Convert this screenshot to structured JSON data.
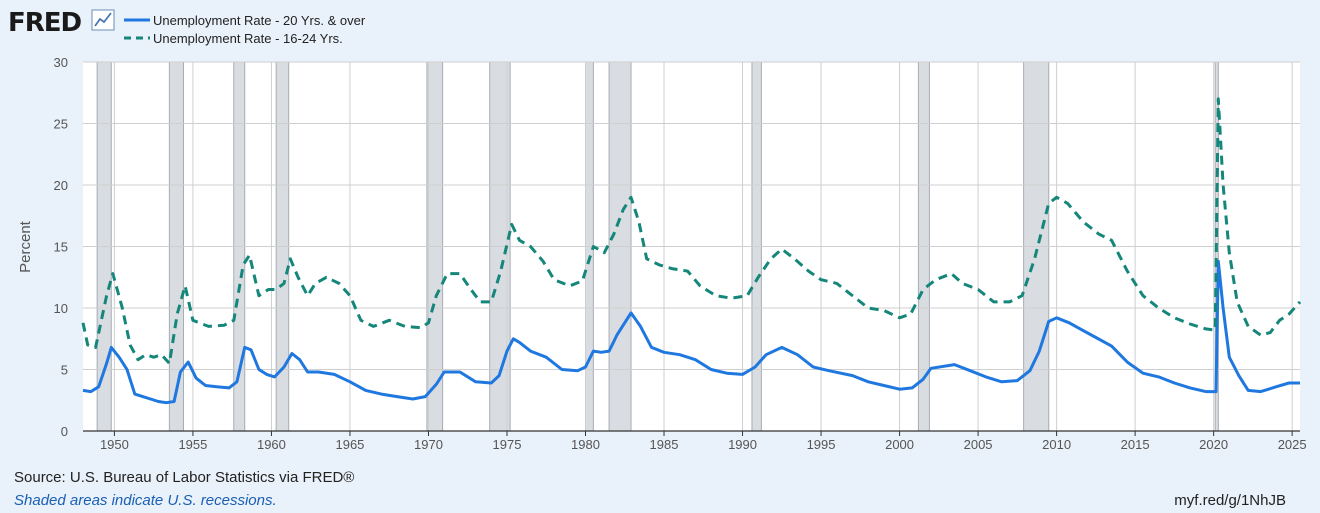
{
  "header": {
    "logo_text": "FRED",
    "logo_icon": "line-chart-icon"
  },
  "legend": [
    {
      "label": "Unemployment Rate - 20 Yrs. & over",
      "style": "solid",
      "color": "#1f77e0"
    },
    {
      "label": "Unemployment Rate - 16-24 Yrs.",
      "style": "dashed",
      "color": "#14867a"
    }
  ],
  "footer": {
    "source": "Source: U.S. Bureau of Labor Statistics via FRED®",
    "note": "Shaded areas indicate U.S. recessions.",
    "link": "myf.red/g/1NhJB"
  },
  "chart_data": {
    "type": "line",
    "ylabel": "Percent",
    "ylim": [
      0,
      30
    ],
    "yticks": [
      0,
      5,
      10,
      15,
      20,
      25,
      30
    ],
    "xlim": [
      1948.0,
      2025.5
    ],
    "xticks": [
      1950,
      1955,
      1960,
      1965,
      1970,
      1975,
      1980,
      1985,
      1990,
      1995,
      2000,
      2005,
      2010,
      2015,
      2020,
      2025
    ],
    "grid": true,
    "legend_position": "top-left",
    "recessions": [
      [
        1948.9,
        1949.8
      ],
      [
        1953.5,
        1954.4
      ],
      [
        1957.6,
        1958.3
      ],
      [
        1960.3,
        1961.1
      ],
      [
        1969.9,
        1970.9
      ],
      [
        1973.9,
        1975.2
      ],
      [
        1980.0,
        1980.5
      ],
      [
        1981.5,
        1982.9
      ],
      [
        1990.6,
        1991.2
      ],
      [
        2001.2,
        2001.9
      ],
      [
        2007.9,
        2009.5
      ],
      [
        2020.1,
        2020.3
      ]
    ],
    "series": [
      {
        "name": "Unemployment Rate - 20 Yrs. & over",
        "color": "#1f77e0",
        "style": "solid",
        "points": [
          [
            1948.0,
            3.3
          ],
          [
            1948.5,
            3.2
          ],
          [
            1949.0,
            3.6
          ],
          [
            1949.5,
            5.5
          ],
          [
            1949.8,
            6.8
          ],
          [
            1950.3,
            6.0
          ],
          [
            1950.8,
            5.0
          ],
          [
            1951.3,
            3.0
          ],
          [
            1951.8,
            2.8
          ],
          [
            1952.3,
            2.6
          ],
          [
            1952.8,
            2.4
          ],
          [
            1953.3,
            2.3
          ],
          [
            1953.8,
            2.4
          ],
          [
            1954.2,
            4.8
          ],
          [
            1954.7,
            5.6
          ],
          [
            1955.2,
            4.3
          ],
          [
            1955.8,
            3.7
          ],
          [
            1956.5,
            3.6
          ],
          [
            1957.3,
            3.5
          ],
          [
            1957.8,
            4.0
          ],
          [
            1958.3,
            6.8
          ],
          [
            1958.7,
            6.6
          ],
          [
            1959.2,
            5.0
          ],
          [
            1959.7,
            4.6
          ],
          [
            1960.2,
            4.4
          ],
          [
            1960.8,
            5.2
          ],
          [
            1961.3,
            6.3
          ],
          [
            1961.8,
            5.8
          ],
          [
            1962.3,
            4.8
          ],
          [
            1963.0,
            4.8
          ],
          [
            1964.0,
            4.6
          ],
          [
            1965.0,
            4.0
          ],
          [
            1966.0,
            3.3
          ],
          [
            1967.0,
            3.0
          ],
          [
            1968.0,
            2.8
          ],
          [
            1969.0,
            2.6
          ],
          [
            1969.8,
            2.8
          ],
          [
            1970.5,
            3.8
          ],
          [
            1971.0,
            4.8
          ],
          [
            1972.0,
            4.8
          ],
          [
            1973.0,
            4.0
          ],
          [
            1974.0,
            3.9
          ],
          [
            1974.5,
            4.5
          ],
          [
            1975.0,
            6.5
          ],
          [
            1975.4,
            7.5
          ],
          [
            1975.8,
            7.2
          ],
          [
            1976.5,
            6.5
          ],
          [
            1977.5,
            6.0
          ],
          [
            1978.5,
            5.0
          ],
          [
            1979.5,
            4.9
          ],
          [
            1980.0,
            5.2
          ],
          [
            1980.5,
            6.5
          ],
          [
            1981.0,
            6.4
          ],
          [
            1981.5,
            6.5
          ],
          [
            1982.0,
            7.8
          ],
          [
            1982.9,
            9.6
          ],
          [
            1983.5,
            8.5
          ],
          [
            1984.2,
            6.8
          ],
          [
            1985.0,
            6.4
          ],
          [
            1986.0,
            6.2
          ],
          [
            1987.0,
            5.8
          ],
          [
            1988.0,
            5.0
          ],
          [
            1989.0,
            4.7
          ],
          [
            1990.0,
            4.6
          ],
          [
            1990.8,
            5.2
          ],
          [
            1991.5,
            6.2
          ],
          [
            1992.5,
            6.8
          ],
          [
            1993.5,
            6.2
          ],
          [
            1994.5,
            5.2
          ],
          [
            1995.5,
            4.9
          ],
          [
            1997.0,
            4.5
          ],
          [
            1998.0,
            4.0
          ],
          [
            1999.0,
            3.7
          ],
          [
            2000.0,
            3.4
          ],
          [
            2000.8,
            3.5
          ],
          [
            2001.5,
            4.2
          ],
          [
            2002.0,
            5.1
          ],
          [
            2003.5,
            5.4
          ],
          [
            2004.5,
            4.9
          ],
          [
            2005.5,
            4.4
          ],
          [
            2006.5,
            4.0
          ],
          [
            2007.5,
            4.1
          ],
          [
            2008.3,
            4.9
          ],
          [
            2008.9,
            6.5
          ],
          [
            2009.5,
            8.9
          ],
          [
            2010.0,
            9.2
          ],
          [
            2010.8,
            8.8
          ],
          [
            2011.5,
            8.3
          ],
          [
            2012.5,
            7.6
          ],
          [
            2013.5,
            6.9
          ],
          [
            2014.5,
            5.6
          ],
          [
            2015.5,
            4.7
          ],
          [
            2016.5,
            4.4
          ],
          [
            2017.5,
            3.9
          ],
          [
            2018.5,
            3.5
          ],
          [
            2019.5,
            3.2
          ],
          [
            2020.15,
            3.2
          ],
          [
            2020.3,
            13.8
          ],
          [
            2020.6,
            10.0
          ],
          [
            2021.0,
            6.0
          ],
          [
            2021.6,
            4.5
          ],
          [
            2022.2,
            3.3
          ],
          [
            2023.0,
            3.2
          ],
          [
            2024.0,
            3.6
          ],
          [
            2024.8,
            3.9
          ],
          [
            2025.5,
            3.9
          ]
        ]
      },
      {
        "name": "Unemployment Rate - 16-24 Yrs.",
        "color": "#14867a",
        "style": "dashed",
        "points": [
          [
            1948.0,
            8.8
          ],
          [
            1948.3,
            7.0
          ],
          [
            1948.8,
            6.8
          ],
          [
            1949.5,
            11.0
          ],
          [
            1949.9,
            12.8
          ],
          [
            1950.5,
            10.0
          ],
          [
            1951.0,
            7.0
          ],
          [
            1951.5,
            5.8
          ],
          [
            1952.0,
            6.2
          ],
          [
            1952.5,
            6.0
          ],
          [
            1953.0,
            6.2
          ],
          [
            1953.5,
            5.5
          ],
          [
            1954.0,
            9.5
          ],
          [
            1954.5,
            11.8
          ],
          [
            1955.0,
            9.0
          ],
          [
            1956.0,
            8.5
          ],
          [
            1957.0,
            8.6
          ],
          [
            1957.6,
            9.0
          ],
          [
            1958.2,
            13.5
          ],
          [
            1958.6,
            14.3
          ],
          [
            1959.2,
            11.0
          ],
          [
            1959.8,
            11.5
          ],
          [
            1960.3,
            11.5
          ],
          [
            1960.8,
            12.0
          ],
          [
            1961.2,
            14.0
          ],
          [
            1961.7,
            12.5
          ],
          [
            1962.3,
            11.0
          ],
          [
            1962.8,
            12.0
          ],
          [
            1963.5,
            12.5
          ],
          [
            1964.3,
            12.0
          ],
          [
            1965.0,
            11.0
          ],
          [
            1965.7,
            9.0
          ],
          [
            1966.5,
            8.5
          ],
          [
            1967.5,
            9.0
          ],
          [
            1968.5,
            8.5
          ],
          [
            1969.5,
            8.4
          ],
          [
            1970.0,
            8.8
          ],
          [
            1970.5,
            11.0
          ],
          [
            1971.2,
            12.8
          ],
          [
            1972.0,
            12.8
          ],
          [
            1972.7,
            11.5
          ],
          [
            1973.3,
            10.5
          ],
          [
            1974.0,
            10.5
          ],
          [
            1974.6,
            13.0
          ],
          [
            1975.3,
            16.8
          ],
          [
            1975.8,
            15.5
          ],
          [
            1976.5,
            15.0
          ],
          [
            1977.3,
            13.8
          ],
          [
            1978.0,
            12.3
          ],
          [
            1979.0,
            11.8
          ],
          [
            1979.8,
            12.2
          ],
          [
            1980.5,
            15.0
          ],
          [
            1981.2,
            14.5
          ],
          [
            1981.8,
            16.0
          ],
          [
            1982.4,
            18.0
          ],
          [
            1982.9,
            19.0
          ],
          [
            1983.4,
            17.0
          ],
          [
            1983.9,
            14.0
          ],
          [
            1984.7,
            13.5
          ],
          [
            1985.5,
            13.2
          ],
          [
            1986.5,
            13.0
          ],
          [
            1987.3,
            11.8
          ],
          [
            1988.3,
            11.0
          ],
          [
            1989.3,
            10.8
          ],
          [
            1990.3,
            11.0
          ],
          [
            1991.0,
            12.5
          ],
          [
            1991.8,
            14.0
          ],
          [
            1992.5,
            14.8
          ],
          [
            1993.3,
            14.0
          ],
          [
            1994.2,
            13.0
          ],
          [
            1995.0,
            12.3
          ],
          [
            1996.0,
            12.0
          ],
          [
            1997.0,
            11.0
          ],
          [
            1998.0,
            10.0
          ],
          [
            1999.0,
            9.8
          ],
          [
            2000.0,
            9.2
          ],
          [
            2000.7,
            9.5
          ],
          [
            2001.5,
            11.5
          ],
          [
            2002.3,
            12.3
          ],
          [
            2003.3,
            12.8
          ],
          [
            2004.0,
            12.0
          ],
          [
            2005.0,
            11.5
          ],
          [
            2006.0,
            10.5
          ],
          [
            2007.0,
            10.5
          ],
          [
            2007.8,
            11.0
          ],
          [
            2008.6,
            14.0
          ],
          [
            2009.5,
            18.5
          ],
          [
            2010.0,
            19.0
          ],
          [
            2010.7,
            18.5
          ],
          [
            2011.7,
            17.0
          ],
          [
            2012.7,
            16.0
          ],
          [
            2013.5,
            15.5
          ],
          [
            2014.5,
            13.0
          ],
          [
            2015.5,
            11.0
          ],
          [
            2016.5,
            10.0
          ],
          [
            2017.5,
            9.2
          ],
          [
            2018.5,
            8.7
          ],
          [
            2019.5,
            8.3
          ],
          [
            2020.1,
            8.2
          ],
          [
            2020.3,
            27.0
          ],
          [
            2020.6,
            20.0
          ],
          [
            2021.0,
            14.5
          ],
          [
            2021.5,
            10.5
          ],
          [
            2022.2,
            8.5
          ],
          [
            2023.0,
            7.8
          ],
          [
            2023.6,
            8.0
          ],
          [
            2024.2,
            9.0
          ],
          [
            2024.8,
            9.5
          ],
          [
            2025.5,
            10.5
          ]
        ]
      }
    ]
  }
}
